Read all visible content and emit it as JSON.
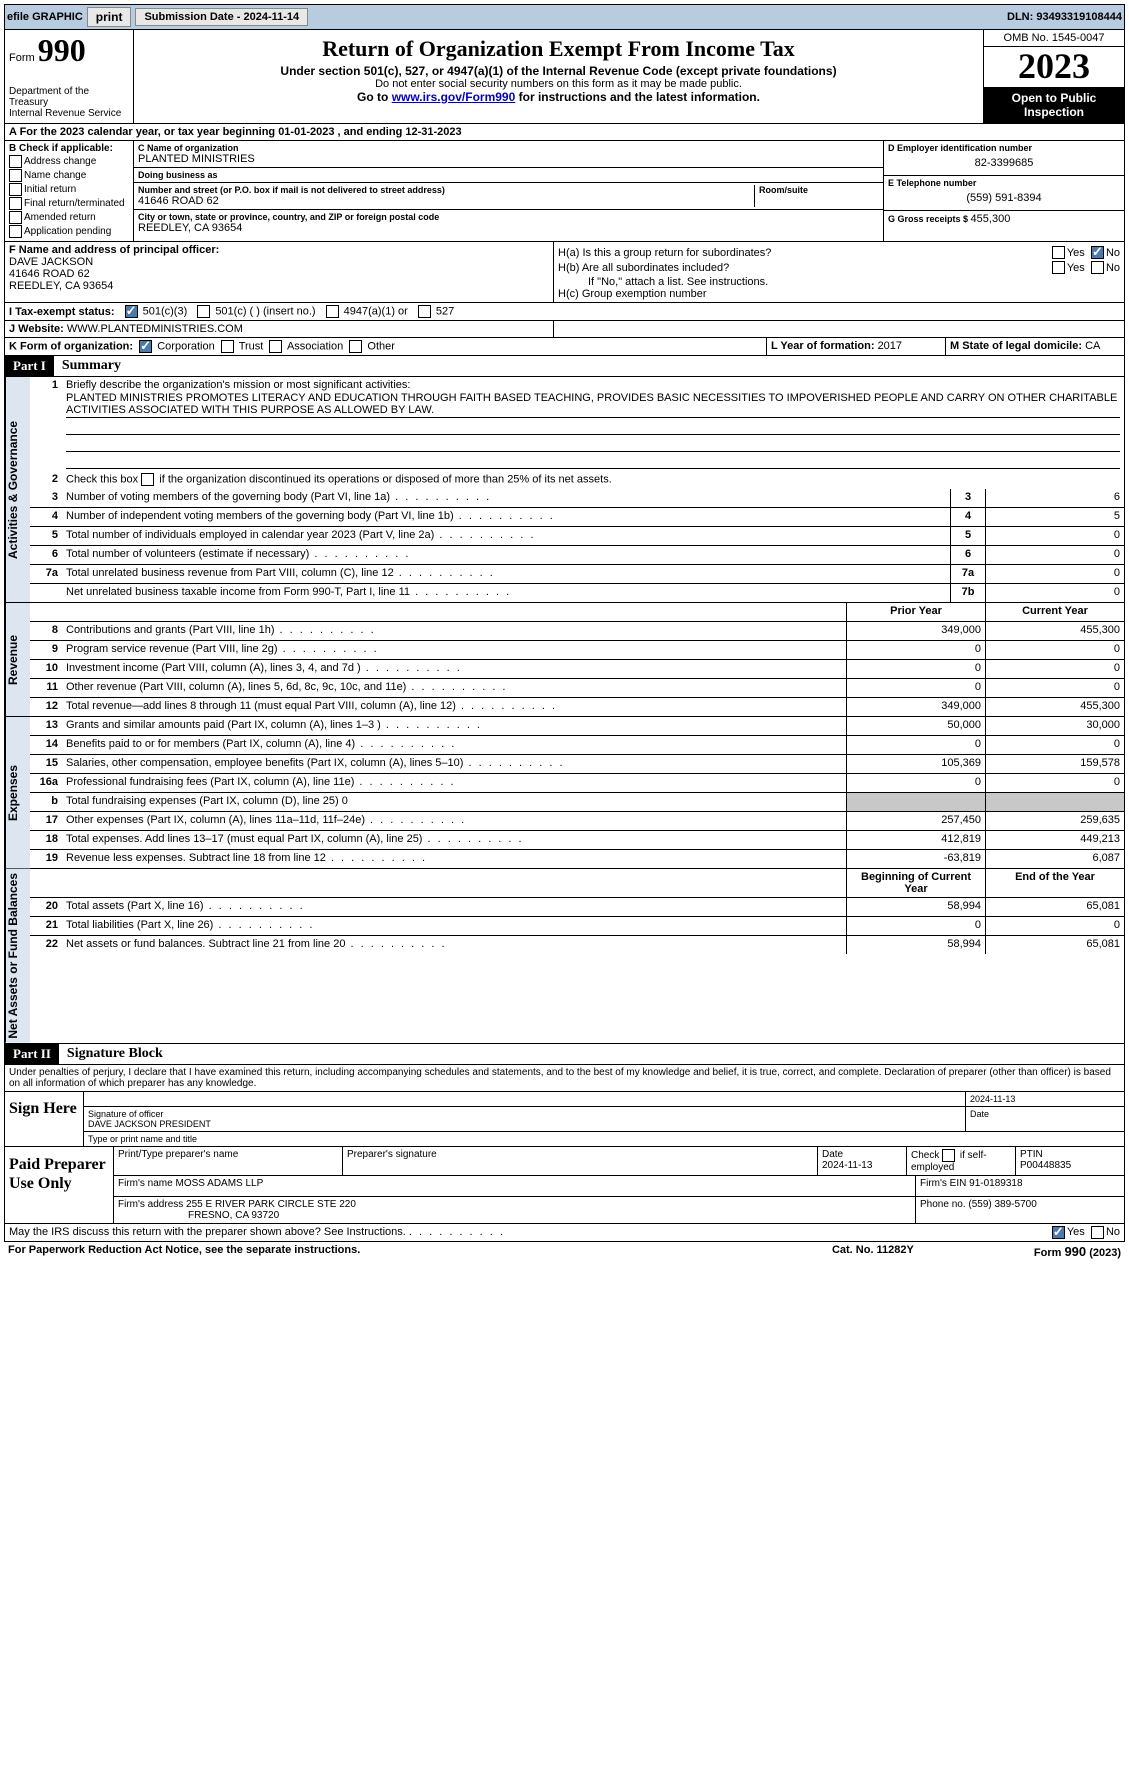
{
  "topbar": {
    "efile": "efile GRAPHIC",
    "print": "print",
    "submission_label": "Submission Date - ",
    "submission_date": "2024-11-14",
    "dln_label": "DLN: ",
    "dln": "93493319108444"
  },
  "header": {
    "form_label": "Form",
    "form_number": "990",
    "title": "Return of Organization Exempt From Income Tax",
    "subtitle": "Under section 501(c), 527, or 4947(a)(1) of the Internal Revenue Code (except private foundations)",
    "warn": "Do not enter social security numbers on this form as it may be made public.",
    "goto": "Go to ",
    "goto_link": "www.irs.gov/Form990",
    "goto_after": " for instructions and the latest information.",
    "dept": "Department of the Treasury\nInternal Revenue Service",
    "omb": "OMB No. 1545-0047",
    "year": "2023",
    "inspection": "Open to Public Inspection"
  },
  "row_a": {
    "text": "A For the 2023 calendar year, or tax year beginning 01-01-2023    , and ending 12-31-2023"
  },
  "box_b": {
    "header": "B Check if applicable:",
    "items": [
      "Address change",
      "Name change",
      "Initial return",
      "Final return/terminated",
      "Amended return",
      "Application pending"
    ]
  },
  "box_c": {
    "name_label": "C Name of organization",
    "name": "PLANTED MINISTRIES",
    "dba_label": "Doing business as",
    "dba": "",
    "street_label": "Number and street (or P.O. box if mail is not delivered to street address)",
    "street": "41646 ROAD 62",
    "suite_label": "Room/suite",
    "suite": "",
    "city_label": "City or town, state or province, country, and ZIP or foreign postal code",
    "city": "REEDLEY, CA  93654"
  },
  "box_d": {
    "ein_label": "D Employer identification number",
    "ein": "82-3399685",
    "phone_label": "E Telephone number",
    "phone": "(559) 591-8394",
    "receipts_label": "G Gross receipts $ ",
    "receipts": "455,300"
  },
  "box_f": {
    "label": "F  Name and address of principal officer:",
    "name": "DAVE JACKSON",
    "street": "41646 ROAD 62",
    "city": "REEDLEY, CA  93654"
  },
  "box_h": {
    "ha": "H(a)  Is this a group return for subordinates?",
    "hb": "H(b)  Are all subordinates included?",
    "hb_note": "If \"No,\" attach a list. See instructions.",
    "hc": "H(c)  Group exemption number ",
    "yes": "Yes",
    "no": "No"
  },
  "tax_status": {
    "label": "I   Tax-exempt status:",
    "opt1": "501(c)(3)",
    "opt2": "501(c) (  ) (insert no.)",
    "opt3": "4947(a)(1) or",
    "opt4": "527"
  },
  "website": {
    "label": "J   Website: ",
    "value": "WWW.PLANTEDMINISTRIES.COM"
  },
  "k_row": {
    "label": "K Form of organization:",
    "corp": "Corporation",
    "trust": "Trust",
    "assoc": "Association",
    "other": "Other",
    "l_label": "L Year of formation: ",
    "l_val": "2017",
    "m_label": "M State of legal domicile: ",
    "m_val": "CA"
  },
  "parts": {
    "p1": "Part I",
    "p1_title": "Summary",
    "p2": "Part II",
    "p2_title": "Signature Block"
  },
  "vtabs": {
    "ag": "Activities & Governance",
    "rev": "Revenue",
    "exp": "Expenses",
    "nab": "Net Assets or Fund Balances"
  },
  "summary": {
    "line1_label": "Briefly describe the organization's mission or most significant activities:",
    "mission": "PLANTED MINISTRIES PROMOTES LITERACY AND EDUCATION THROUGH FAITH BASED TEACHING, PROVIDES BASIC NECESSITIES TO IMPOVERISHED PEOPLE AND CARRY ON OTHER CHARITABLE ACTIVITIES ASSOCIATED WITH THIS PURPOSE AS ALLOWED BY LAW.",
    "line2": "Check this box      if the organization discontinued its operations or disposed of more than 25% of its net assets.",
    "lines": [
      {
        "n": "3",
        "d": "Number of voting members of the governing body (Part VI, line 1a)",
        "box": "3",
        "v": "6"
      },
      {
        "n": "4",
        "d": "Number of independent voting members of the governing body (Part VI, line 1b)",
        "box": "4",
        "v": "5"
      },
      {
        "n": "5",
        "d": "Total number of individuals employed in calendar year 2023 (Part V, line 2a)",
        "box": "5",
        "v": "0"
      },
      {
        "n": "6",
        "d": "Total number of volunteers (estimate if necessary)",
        "box": "6",
        "v": "0"
      },
      {
        "n": "7a",
        "d": "Total unrelated business revenue from Part VIII, column (C), line 12",
        "box": "7a",
        "v": "0"
      },
      {
        "n": "",
        "d": "Net unrelated business taxable income from Form 990-T, Part I, line 11",
        "box": "7b",
        "v": "0"
      }
    ],
    "col_headers": {
      "prior": "Prior Year",
      "current": "Current Year"
    },
    "revenue": [
      {
        "n": "8",
        "d": "Contributions and grants (Part VIII, line 1h)",
        "p": "349,000",
        "c": "455,300"
      },
      {
        "n": "9",
        "d": "Program service revenue (Part VIII, line 2g)",
        "p": "0",
        "c": "0"
      },
      {
        "n": "10",
        "d": "Investment income (Part VIII, column (A), lines 3, 4, and 7d )",
        "p": "0",
        "c": "0"
      },
      {
        "n": "11",
        "d": "Other revenue (Part VIII, column (A), lines 5, 6d, 8c, 9c, 10c, and 11e)",
        "p": "0",
        "c": "0"
      },
      {
        "n": "12",
        "d": "Total revenue—add lines 8 through 11 (must equal Part VIII, column (A), line 12)",
        "p": "349,000",
        "c": "455,300"
      }
    ],
    "expenses": [
      {
        "n": "13",
        "d": "Grants and similar amounts paid (Part IX, column (A), lines 1–3 )",
        "p": "50,000",
        "c": "30,000"
      },
      {
        "n": "14",
        "d": "Benefits paid to or for members (Part IX, column (A), line 4)",
        "p": "0",
        "c": "0"
      },
      {
        "n": "15",
        "d": "Salaries, other compensation, employee benefits (Part IX, column (A), lines 5–10)",
        "p": "105,369",
        "c": "159,578"
      },
      {
        "n": "16a",
        "d": "Professional fundraising fees (Part IX, column (A), line 11e)",
        "p": "0",
        "c": "0"
      },
      {
        "n": "b",
        "d": "Total fundraising expenses (Part IX, column (D), line 25) 0",
        "p": "",
        "c": "",
        "shaded": true
      },
      {
        "n": "17",
        "d": "Other expenses (Part IX, column (A), lines 11a–11d, 11f–24e)",
        "p": "257,450",
        "c": "259,635"
      },
      {
        "n": "18",
        "d": "Total expenses. Add lines 13–17 (must equal Part IX, column (A), line 25)",
        "p": "412,819",
        "c": "449,213"
      },
      {
        "n": "19",
        "d": "Revenue less expenses. Subtract line 18 from line 12",
        "p": "-63,819",
        "c": "6,087"
      }
    ],
    "na_headers": {
      "begin": "Beginning of Current Year",
      "end": "End of the Year"
    },
    "netassets": [
      {
        "n": "20",
        "d": "Total assets (Part X, line 16)",
        "p": "58,994",
        "c": "65,081"
      },
      {
        "n": "21",
        "d": "Total liabilities (Part X, line 26)",
        "p": "0",
        "c": "0"
      },
      {
        "n": "22",
        "d": "Net assets or fund balances. Subtract line 21 from line 20",
        "p": "58,994",
        "c": "65,081"
      }
    ]
  },
  "sig": {
    "declaration": "Under penalties of perjury, I declare that I have examined this return, including accompanying schedules and statements, and to the best of my knowledge and belief, it is true, correct, and complete. Declaration of preparer (other than officer) is based on all information of which preparer has any knowledge.",
    "sign_here": "Sign Here",
    "sig_officer_label": "Signature of officer",
    "officer_name": "DAVE JACKSON  PRESIDENT",
    "officer_type_label": "Type or print name and title",
    "date_label": "Date",
    "sig_date": "2024-11-13",
    "paid": "Paid Preparer Use Only",
    "print_label": "Print/Type preparer's name",
    "prep_sig_label": "Preparer's signature",
    "prep_date": "2024-11-13",
    "check_label": "Check       if self-employed",
    "ptin_label": "PTIN",
    "ptin": "P00448835",
    "firm_name_label": "Firm's name   ",
    "firm_name": "MOSS ADAMS LLP",
    "firm_ein_label": "Firm's EIN  ",
    "firm_ein": "91-0189318",
    "firm_addr_label": "Firm's address ",
    "firm_addr1": "255 E RIVER PARK CIRCLE STE 220",
    "firm_addr2": "FRESNO, CA  93720",
    "phone_label": "Phone no. ",
    "phone": "(559) 389-5700",
    "discuss": "May the IRS discuss this return with the preparer shown above? See Instructions.",
    "yes": "Yes",
    "no": "No"
  },
  "footer": {
    "left": "For Paperwork Reduction Act Notice, see the separate instructions.",
    "mid": "Cat. No. 11282Y",
    "right": "Form 990 (2023)"
  }
}
